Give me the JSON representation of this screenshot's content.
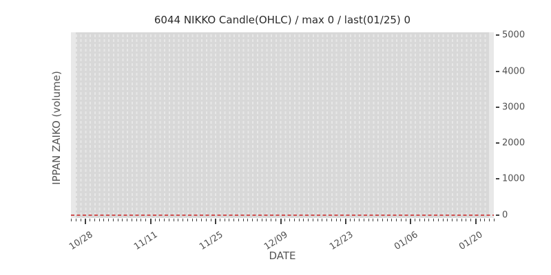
{
  "figure": {
    "background": "#ffffff"
  },
  "chart_data": {
    "type": "bar",
    "title": "6044 NIKKO Candle(OHLC) / max 0 / last(01/25) 0",
    "xlabel": "DATE",
    "ylabel": "IPPAN ZAIKO (volume)",
    "x_tick_labels": [
      "10/28",
      "11/11",
      "11/25",
      "12/09",
      "12/23",
      "01/06",
      "01/20"
    ],
    "x_tick_day_indices": [
      2,
      16,
      30,
      44,
      58,
      72,
      86
    ],
    "day_count": 90,
    "x_minor_tick_unit_days": 1,
    "x_major_tick_unit_days": 14,
    "y_ticks": [
      0,
      1000,
      2000,
      3000,
      4000,
      5000
    ],
    "ylim": [
      -80,
      5080
    ],
    "yaxis_side": "right",
    "grid": {
      "vertical_daily_dashed": true,
      "horizontal": false
    },
    "legend": null,
    "series": [
      {
        "name": "IPPAN ZAIKO (volume)",
        "max": 0,
        "last_date": "01/25",
        "last_value": 0,
        "constant_value": 0,
        "style": "red dashed horizontal line at 0"
      }
    ]
  },
  "colors": {
    "plot_bg": "#e8e8e8",
    "band_bg": "#d8d8d8",
    "gridline": "#e7e7e7",
    "zero_line": "#ce4e4e",
    "tick_mark": "#3f3f3f",
    "tick_label": "#4f4f4f",
    "axis_label": "#555555",
    "title": "#2a2a2a"
  }
}
